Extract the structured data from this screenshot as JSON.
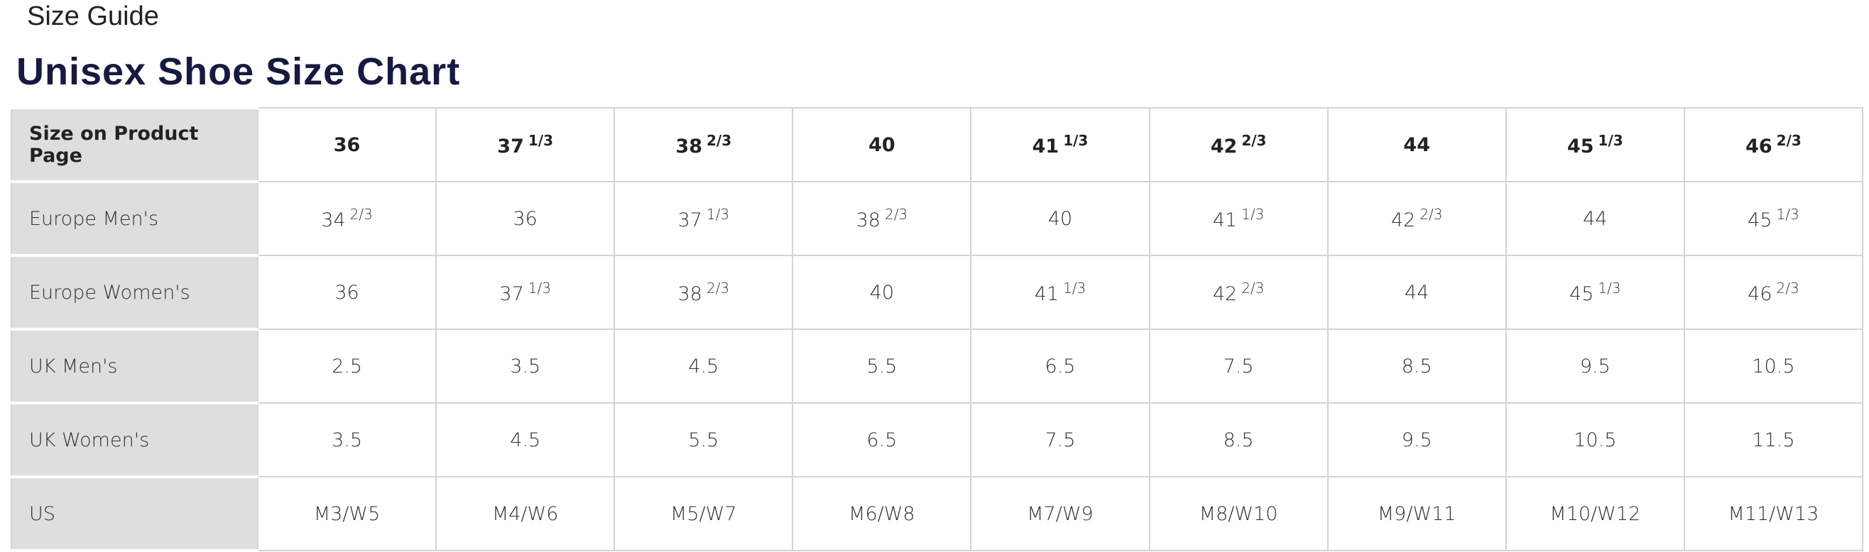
{
  "header": {
    "page_title": "Size Guide",
    "title": "Unisex Shoe Size Chart"
  },
  "table": {
    "rows": [
      {
        "label": "Size on Product Page",
        "cells": [
          {
            "n": "36"
          },
          {
            "n": "37",
            "f": "1/3"
          },
          {
            "n": "38",
            "f": "2/3"
          },
          {
            "n": "40"
          },
          {
            "n": "41",
            "f": "1/3"
          },
          {
            "n": "42",
            "f": "2/3"
          },
          {
            "n": "44"
          },
          {
            "n": "45",
            "f": "1/3"
          },
          {
            "n": "46",
            "f": "2/3"
          }
        ]
      },
      {
        "label": "Europe Men's",
        "cells": [
          {
            "n": "34",
            "f": "2/3"
          },
          {
            "n": "36"
          },
          {
            "n": "37",
            "f": "1/3"
          },
          {
            "n": "38",
            "f": "2/3"
          },
          {
            "n": "40"
          },
          {
            "n": "41",
            "f": "1/3"
          },
          {
            "n": "42",
            "f": "2/3"
          },
          {
            "n": "44"
          },
          {
            "n": "45",
            "f": "1/3"
          }
        ]
      },
      {
        "label": "Europe Women's",
        "cells": [
          {
            "n": "36"
          },
          {
            "n": "37",
            "f": "1/3"
          },
          {
            "n": "38",
            "f": "2/3"
          },
          {
            "n": "40"
          },
          {
            "n": "41",
            "f": "1/3"
          },
          {
            "n": "42",
            "f": "2/3"
          },
          {
            "n": "44"
          },
          {
            "n": "45",
            "f": "1/3"
          },
          {
            "n": "46",
            "f": "2/3"
          }
        ]
      },
      {
        "label": "UK Men's",
        "cells": [
          {
            "n": "2.5"
          },
          {
            "n": "3.5"
          },
          {
            "n": "4.5"
          },
          {
            "n": "5.5"
          },
          {
            "n": "6.5"
          },
          {
            "n": "7.5"
          },
          {
            "n": "8.5"
          },
          {
            "n": "9.5"
          },
          {
            "n": "10.5"
          }
        ]
      },
      {
        "label": "UK Women's",
        "cells": [
          {
            "n": "3.5"
          },
          {
            "n": "4.5"
          },
          {
            "n": "5.5"
          },
          {
            "n": "6.5"
          },
          {
            "n": "7.5"
          },
          {
            "n": "8.5"
          },
          {
            "n": "9.5"
          },
          {
            "n": "10.5"
          },
          {
            "n": "11.5"
          }
        ]
      },
      {
        "label": "US",
        "cells": [
          {
            "n": "M3/W5"
          },
          {
            "n": "M4/W6"
          },
          {
            "n": "M5/W7"
          },
          {
            "n": "M6/W8"
          },
          {
            "n": "M7/W9"
          },
          {
            "n": "M8/W10"
          },
          {
            "n": "M9/W11"
          },
          {
            "n": "M10/W12"
          },
          {
            "n": "M11/W13"
          }
        ]
      }
    ]
  }
}
